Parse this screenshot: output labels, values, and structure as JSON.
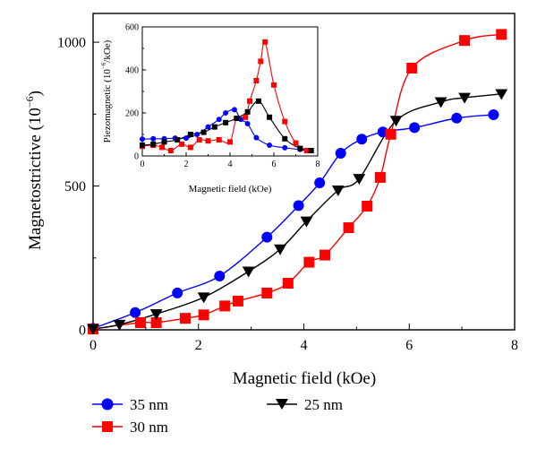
{
  "chart_data": [
    {
      "type": "line",
      "xlabel": "Magnetic field (kOe)",
      "ylabel": "Magnetostrictive (10",
      "ylabel_exp": "−6",
      "ylabel_tail": ")",
      "xlim": [
        0,
        8
      ],
      "ylim": [
        0,
        1100
      ],
      "xticks": [
        "0",
        "2",
        "4",
        "6",
        "8"
      ],
      "yticks": [
        "0",
        "500",
        "1000"
      ],
      "grid": false,
      "legend_position": "bottom",
      "series": [
        {
          "name": "35 nm",
          "color": "#0000ff",
          "marker": "circle",
          "x": [
            0.0,
            0.8,
            1.6,
            2.4,
            3.3,
            3.9,
            4.3,
            4.7,
            5.1,
            5.5,
            6.1,
            6.9,
            7.6
          ],
          "y": [
            5,
            60,
            128,
            187,
            322,
            432,
            511,
            614,
            663,
            688,
            703,
            736,
            748
          ]
        },
        {
          "name": "30 nm",
          "color": "#ff0000",
          "marker": "square",
          "x": [
            0.0,
            0.9,
            1.2,
            1.75,
            2.1,
            2.5,
            2.75,
            3.3,
            3.7,
            4.1,
            4.4,
            4.85,
            5.2,
            5.45,
            5.65,
            6.05,
            7.05,
            7.75
          ],
          "y": [
            3,
            25,
            25,
            40,
            52,
            83,
            100,
            128,
            162,
            235,
            260,
            355,
            430,
            530,
            680,
            910,
            1006,
            1027
          ]
        },
        {
          "name": "25 nm",
          "color": "#000000",
          "marker": "triangle-down",
          "x": [
            0.0,
            0.5,
            1.2,
            2.1,
            2.95,
            3.55,
            4.05,
            4.65,
            5.05,
            5.75,
            6.6,
            7.05,
            7.75
          ],
          "y": [
            3,
            18,
            55,
            113,
            203,
            280,
            377,
            485,
            525,
            727,
            792,
            807,
            820
          ]
        }
      ]
    },
    {
      "type": "line",
      "inset": true,
      "xlabel": "Magnetic field (kOe)",
      "ylabel": "Piezomagnetic (10",
      "ylabel_exp": "−6",
      "ylabel_tail": "/kOe)",
      "xlim": [
        0,
        8
      ],
      "ylim": [
        0,
        600
      ],
      "xticks": [
        "0",
        "2",
        "4",
        "6",
        "8"
      ],
      "yticks": [
        "0",
        "200",
        "400",
        "600"
      ],
      "grid": false,
      "series": [
        {
          "name": "35 nm",
          "color": "#0000ff",
          "marker": "circle",
          "x": [
            0.0,
            0.5,
            1.0,
            1.5,
            2.0,
            2.5,
            3.0,
            3.5,
            3.8,
            4.2,
            4.5,
            4.8,
            5.2,
            5.8,
            6.5,
            7.2,
            7.7
          ],
          "y": [
            78,
            80,
            80,
            83,
            83,
            100,
            135,
            170,
            200,
            215,
            170,
            150,
            85,
            50,
            38,
            30,
            25
          ]
        },
        {
          "name": "30 nm",
          "color": "#ff0000",
          "marker": "square",
          "x": [
            0.0,
            0.5,
            0.9,
            1.3,
            1.8,
            2.2,
            2.6,
            3.0,
            3.5,
            4.0,
            4.3,
            4.7,
            4.9,
            5.2,
            5.4,
            5.6,
            6.0,
            6.5,
            7.0,
            7.5,
            7.7
          ],
          "y": [
            45,
            50,
            40,
            25,
            55,
            40,
            75,
            70,
            75,
            65,
            175,
            180,
            255,
            350,
            440,
            530,
            330,
            160,
            60,
            25,
            25
          ]
        },
        {
          "name": "25 nm",
          "color": "#000000",
          "marker": "square",
          "x": [
            0.0,
            0.5,
            1.0,
            1.6,
            2.2,
            2.8,
            3.3,
            3.8,
            4.3,
            4.8,
            5.3,
            5.8,
            6.5,
            7.2,
            7.7
          ],
          "y": [
            50,
            55,
            65,
            75,
            100,
            110,
            135,
            155,
            175,
            205,
            255,
            180,
            80,
            35,
            25
          ]
        }
      ]
    }
  ]
}
